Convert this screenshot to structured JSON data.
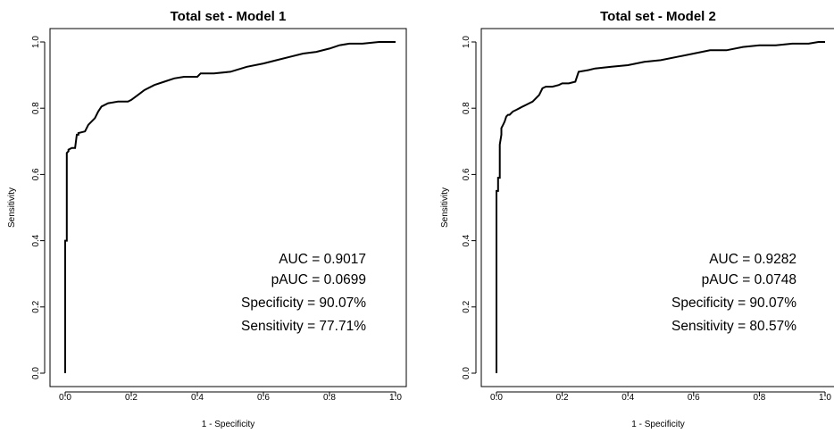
{
  "chart_data": [
    {
      "type": "line",
      "title": "Total set - Model 1",
      "xlabel": "1 - Specificity",
      "ylabel": "Sensitivity",
      "xlim": [
        0,
        1
      ],
      "ylim": [
        0,
        1
      ],
      "xticks": [
        "0.0",
        "0.2",
        "0.4",
        "0.6",
        "0.8",
        "1.0"
      ],
      "yticks": [
        "0.0",
        "0.2",
        "0.4",
        "0.6",
        "0.8",
        "1.0"
      ],
      "grid": false,
      "annotations": [
        "AUC = 0.9017",
        "pAUC = 0.0699",
        "Specificity = 90.07%",
        "Sensitivity = 77.71%"
      ],
      "series": [
        {
          "x": [
            0,
            0,
            0.005,
            0.005,
            0.01,
            0.01,
            0.02,
            0.03,
            0.035,
            0.04,
            0.04,
            0.06,
            0.07,
            0.09,
            0.1,
            0.11,
            0.13,
            0.16,
            0.19,
            0.2,
            0.22,
            0.24,
            0.27,
            0.3,
            0.33,
            0.36,
            0.4,
            0.41,
            0.45,
            0.5,
            0.55,
            0.6,
            0.64,
            0.68,
            0.72,
            0.76,
            0.8,
            0.83,
            0.86,
            0.9,
            0.95,
            1.0
          ],
          "y": [
            0,
            0.4,
            0.4,
            0.665,
            0.67,
            0.675,
            0.68,
            0.68,
            0.72,
            0.72,
            0.725,
            0.73,
            0.75,
            0.77,
            0.79,
            0.805,
            0.815,
            0.82,
            0.82,
            0.825,
            0.84,
            0.855,
            0.87,
            0.88,
            0.89,
            0.895,
            0.895,
            0.905,
            0.905,
            0.91,
            0.925,
            0.935,
            0.945,
            0.955,
            0.965,
            0.97,
            0.98,
            0.99,
            0.995,
            0.995,
            1.0,
            1.0
          ]
        }
      ]
    },
    {
      "type": "line",
      "title": "Total set - Model 2",
      "xlabel": "1 - Specificity",
      "ylabel": "Sensitivity",
      "xlim": [
        0,
        1
      ],
      "ylim": [
        0,
        1
      ],
      "xticks": [
        "0.0",
        "0.2",
        "0.4",
        "0.6",
        "0.8",
        "1.0"
      ],
      "yticks": [
        "0.0",
        "0.2",
        "0.4",
        "0.6",
        "0.8",
        "1.0"
      ],
      "grid": false,
      "annotations": [
        "AUC = 0.9282",
        "pAUC = 0.0748",
        "Specificity = 90.07%",
        "Sensitivity = 80.57%"
      ],
      "series": [
        {
          "x": [
            0,
            0,
            0.005,
            0.005,
            0.01,
            0.01,
            0.015,
            0.015,
            0.02,
            0.025,
            0.03,
            0.035,
            0.04,
            0.05,
            0.06,
            0.07,
            0.08,
            0.09,
            0.1,
            0.11,
            0.12,
            0.13,
            0.14,
            0.15,
            0.17,
            0.19,
            0.2,
            0.22,
            0.24,
            0.25,
            0.28,
            0.3,
            0.35,
            0.4,
            0.45,
            0.5,
            0.55,
            0.6,
            0.65,
            0.7,
            0.75,
            0.8,
            0.85,
            0.9,
            0.95,
            0.98,
            1.0
          ],
          "y": [
            0,
            0.55,
            0.55,
            0.59,
            0.59,
            0.69,
            0.72,
            0.74,
            0.75,
            0.76,
            0.775,
            0.78,
            0.78,
            0.79,
            0.795,
            0.8,
            0.805,
            0.81,
            0.815,
            0.82,
            0.83,
            0.84,
            0.86,
            0.865,
            0.865,
            0.87,
            0.875,
            0.875,
            0.88,
            0.91,
            0.915,
            0.92,
            0.925,
            0.93,
            0.94,
            0.945,
            0.955,
            0.965,
            0.975,
            0.975,
            0.985,
            0.99,
            0.99,
            0.995,
            0.995,
            1.0,
            1.0
          ]
        }
      ]
    }
  ]
}
